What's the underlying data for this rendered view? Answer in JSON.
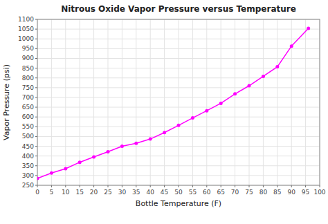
{
  "chart_data": {
    "type": "line",
    "title": "Nitrous Oxide Vapor Pressure versus Temperature",
    "xlabel": "Bottle Temperature (F)",
    "ylabel": "Vapor Pressure (psi)",
    "x": [
      0,
      5,
      10,
      15,
      20,
      25,
      30,
      35,
      40,
      45,
      50,
      55,
      60,
      65,
      70,
      75,
      80,
      85,
      90,
      96
    ],
    "values": [
      285,
      313,
      335,
      368,
      395,
      422,
      450,
      465,
      487,
      520,
      557,
      595,
      632,
      670,
      718,
      760,
      808,
      857,
      963,
      1054
    ],
    "color": "#ff00ff",
    "marker": "circle",
    "xlim": [
      0,
      100
    ],
    "ylim": [
      250,
      1100
    ],
    "xticks": [
      0,
      5,
      10,
      15,
      20,
      25,
      30,
      35,
      40,
      45,
      50,
      55,
      60,
      65,
      70,
      75,
      80,
      85,
      90,
      95,
      100
    ],
    "yticks": [
      250,
      300,
      350,
      400,
      450,
      500,
      550,
      600,
      650,
      700,
      750,
      800,
      850,
      900,
      950,
      1000,
      1050,
      1100
    ],
    "grid": true
  }
}
